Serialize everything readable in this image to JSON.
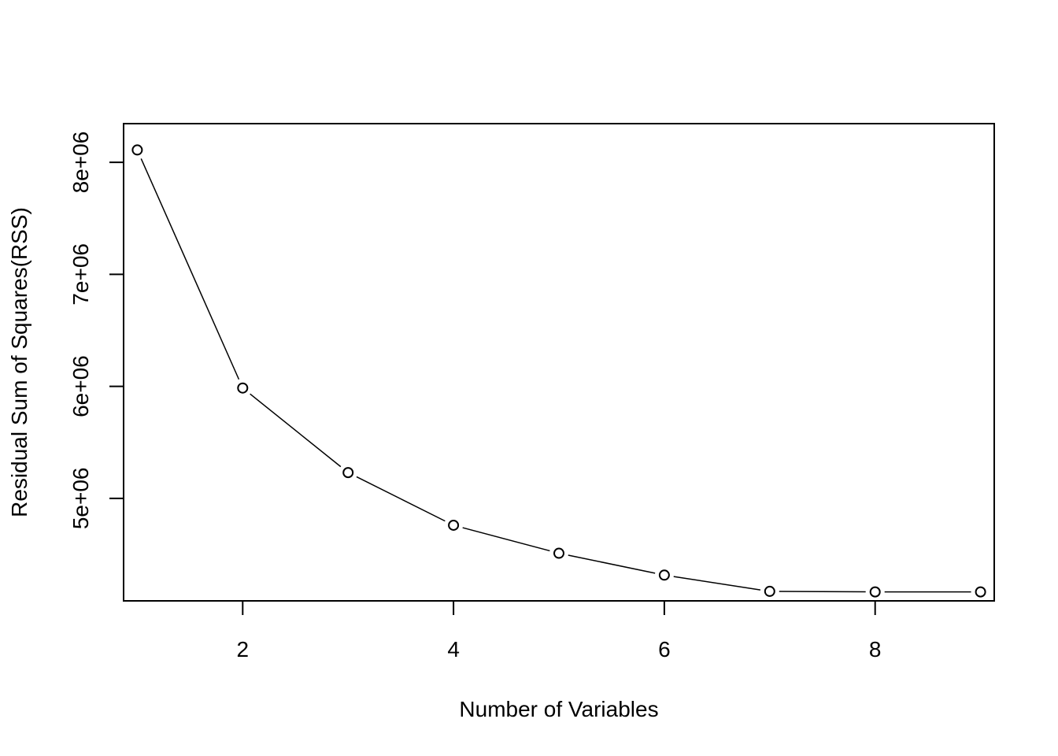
{
  "chart_data": {
    "type": "line",
    "title": "",
    "xlabel": "Number of Variables",
    "ylabel": "Residual Sum of Squares(RSS)",
    "x": [
      1,
      2,
      3,
      4,
      5,
      6,
      7,
      8,
      9
    ],
    "series": [
      {
        "values": [
          8110000,
          5985000,
          5230000,
          4760000,
          4510000,
          4315000,
          4170000,
          4165000,
          4165000
        ]
      }
    ],
    "xlim": [
      0.87,
      9.13
    ],
    "ylim": [
      4085000,
      8345000
    ],
    "xticks": [
      2,
      4,
      6,
      8
    ],
    "xtick_labels": [
      "2",
      "4",
      "6",
      "8"
    ],
    "yticks": [
      5000000,
      6000000,
      7000000,
      8000000
    ],
    "ytick_labels": [
      "5e+06",
      "6e+06",
      "7e+06",
      "8e+06"
    ],
    "grid": false,
    "legend": "none",
    "marker": "open-circle",
    "line_color": "#000000",
    "background": "#ffffff"
  }
}
